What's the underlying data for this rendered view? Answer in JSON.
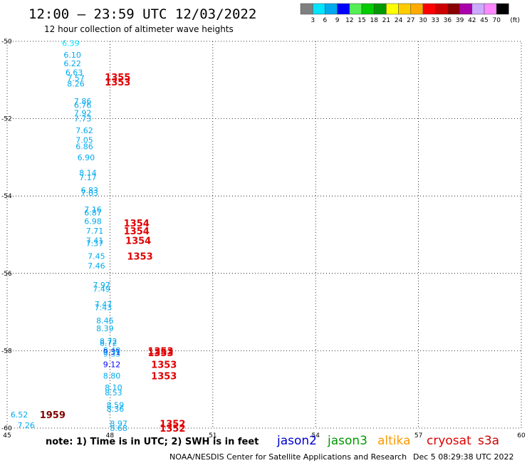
{
  "header": {
    "title": "12:00 – 23:59 UTC 12/03/2022",
    "subtitle": "12 hour collection of altimeter wave heights"
  },
  "colorbar": {
    "labels": [
      "3",
      "6",
      "9",
      "12",
      "15",
      "18",
      "21",
      "24",
      "27",
      "30",
      "33",
      "36",
      "39",
      "42",
      "45",
      "70"
    ],
    "unit": "(ft)",
    "colors": [
      "#808080",
      "#00e5ff",
      "#00aaee",
      "#0000ff",
      "#55ee55",
      "#00cc00",
      "#009900",
      "#ffff00",
      "#ffcc00",
      "#ffaa00",
      "#ff0000",
      "#cc0000",
      "#880000",
      "#aa00aa",
      "#ccaaff",
      "#ff88ff",
      "#000000"
    ]
  },
  "footer": {
    "note": "note: 1) Time is in UTC; 2) SWH is in feet",
    "missions": [
      {
        "name": "jason2",
        "color": "#0000cc"
      },
      {
        "name": "jason3",
        "color": "#009900"
      },
      {
        "name": "altika",
        "color": "#ff9900"
      },
      {
        "name": "cryosat",
        "color": "#dd0000"
      },
      {
        "name": "s3a",
        "color": "#cc0000"
      }
    ],
    "credit": "NOAA/NESDIS Center for Satellite Applications and Research",
    "timestamp": "Dec  5 08:29:38 UTC 2022"
  },
  "chart_data": {
    "type": "scatter",
    "xlim": [
      45,
      60
    ],
    "ylim": [
      -60,
      -50
    ],
    "x_ticks": [
      "45",
      "48",
      "51",
      "54",
      "57",
      "60"
    ],
    "y_ticks": [
      "-50",
      "-52",
      "-54",
      "-56",
      "-58",
      "-60"
    ],
    "grid": true,
    "colors": {
      "swh_cyan": "#00c0e0",
      "swh_blue": "#0040c0",
      "time_red": "#e00000",
      "time_darkred": "#800000",
      "swh_gray": "#606060"
    },
    "points": [
      {
        "x": 46.6,
        "y": -50.05,
        "label": "6.39",
        "color": "#00e5ff"
      },
      {
        "x": 46.65,
        "y": -50.35,
        "label": "6.10",
        "color": "#00aaee"
      },
      {
        "x": 46.65,
        "y": -50.57,
        "label": "6.22",
        "color": "#00aaee"
      },
      {
        "x": 46.7,
        "y": -50.8,
        "label": "6.63",
        "color": "#00aaee"
      },
      {
        "x": 46.75,
        "y": -50.95,
        "label": "7.57",
        "color": "#00aaee"
      },
      {
        "x": 46.75,
        "y": -51.1,
        "label": "8.26",
        "color": "#00aaee"
      },
      {
        "x": 46.95,
        "y": -51.55,
        "label": "7.86",
        "color": "#00aaee"
      },
      {
        "x": 46.95,
        "y": -51.65,
        "label": "6.76",
        "color": "#00aaee"
      },
      {
        "x": 46.95,
        "y": -51.85,
        "label": "7.92",
        "color": "#00aaee"
      },
      {
        "x": 46.95,
        "y": -52.0,
        "label": "7.73",
        "color": "#00aaee"
      },
      {
        "x": 47.0,
        "y": -52.3,
        "label": "7.62",
        "color": "#00aaee"
      },
      {
        "x": 47.0,
        "y": -52.55,
        "label": "7.05",
        "color": "#00aaee"
      },
      {
        "x": 47.0,
        "y": -52.72,
        "label": "6.86",
        "color": "#00aaee"
      },
      {
        "x": 47.05,
        "y": -53.0,
        "label": "6.90",
        "color": "#00aaee"
      },
      {
        "x": 47.1,
        "y": -53.4,
        "label": "8.14",
        "color": "#00aaee"
      },
      {
        "x": 47.1,
        "y": -53.52,
        "label": "7.17",
        "color": "#00aaee"
      },
      {
        "x": 47.15,
        "y": -53.85,
        "label": "6.83",
        "color": "#00aaee"
      },
      {
        "x": 47.15,
        "y": -53.92,
        "label": "7.03",
        "color": "#00aaee"
      },
      {
        "x": 47.25,
        "y": -54.35,
        "label": "7.16",
        "color": "#00aaee"
      },
      {
        "x": 47.25,
        "y": -54.43,
        "label": "6.87",
        "color": "#00aaee"
      },
      {
        "x": 47.25,
        "y": -54.65,
        "label": "6.98",
        "color": "#00aaee"
      },
      {
        "x": 47.3,
        "y": -54.9,
        "label": "7.71",
        "color": "#00aaee"
      },
      {
        "x": 47.3,
        "y": -55.15,
        "label": "7.41",
        "color": "#00aaee"
      },
      {
        "x": 47.3,
        "y": -55.22,
        "label": "7.37",
        "color": "#00aaee"
      },
      {
        "x": 47.35,
        "y": -55.55,
        "label": "7.45",
        "color": "#00aaee"
      },
      {
        "x": 47.35,
        "y": -55.8,
        "label": "7.46",
        "color": "#00aaee"
      },
      {
        "x": 47.5,
        "y": -56.3,
        "label": "7.97",
        "color": "#00aaee"
      },
      {
        "x": 47.5,
        "y": -56.4,
        "label": "7.49",
        "color": "#00aaee"
      },
      {
        "x": 47.55,
        "y": -56.8,
        "label": "7.47",
        "color": "#00aaee"
      },
      {
        "x": 47.55,
        "y": -56.88,
        "label": "7.43",
        "color": "#00aaee"
      },
      {
        "x": 47.6,
        "y": -57.22,
        "label": "8.46",
        "color": "#00aaee"
      },
      {
        "x": 47.6,
        "y": -57.42,
        "label": "8.39",
        "color": "#00aaee"
      },
      {
        "x": 47.7,
        "y": -57.75,
        "label": "8.72",
        "color": "#00aaee"
      },
      {
        "x": 47.7,
        "y": -57.8,
        "label": "8.72",
        "color": "#00aaee"
      },
      {
        "x": 47.8,
        "y": -57.98,
        "label": "8.40",
        "color": "#00aaee"
      },
      {
        "x": 47.8,
        "y": -58.03,
        "label": "9.31",
        "color": "#0000ff"
      },
      {
        "x": 47.8,
        "y": -58.08,
        "label": "9.33",
        "color": "#00aaee"
      },
      {
        "x": 47.8,
        "y": -58.35,
        "label": "9.12",
        "color": "#0000ff"
      },
      {
        "x": 47.8,
        "y": -58.65,
        "label": "8.80",
        "color": "#00aaee"
      },
      {
        "x": 47.85,
        "y": -58.95,
        "label": "8.10",
        "color": "#00aaee"
      },
      {
        "x": 47.85,
        "y": -59.08,
        "label": "8.53",
        "color": "#00aaee"
      },
      {
        "x": 47.9,
        "y": -59.4,
        "label": "8.59",
        "color": "#00aaee"
      },
      {
        "x": 47.9,
        "y": -59.5,
        "label": "8.36",
        "color": "#00aaee"
      },
      {
        "x": 45.1,
        "y": -59.65,
        "label": "6.52",
        "color": "#00aaee"
      },
      {
        "x": 45.3,
        "y": -59.93,
        "label": "7.26",
        "color": "#00aaee"
      },
      {
        "x": 48.0,
        "y": -59.88,
        "label": "8.97",
        "color": "#00aaee"
      },
      {
        "x": 48.0,
        "y": -60.0,
        "label": "8.68",
        "color": "#00aaee"
      }
    ],
    "time_labels": [
      {
        "x": 47.85,
        "y": -50.92,
        "label": "1355",
        "color": "#e00000"
      },
      {
        "x": 47.85,
        "y": -51.05,
        "label": "1353",
        "color": "#e00000"
      },
      {
        "x": 48.4,
        "y": -54.7,
        "label": "1354",
        "color": "#e00000"
      },
      {
        "x": 48.4,
        "y": -54.9,
        "label": "1354",
        "color": "#e00000"
      },
      {
        "x": 48.45,
        "y": -55.15,
        "label": "1354",
        "color": "#e00000"
      },
      {
        "x": 48.5,
        "y": -55.55,
        "label": "1353",
        "color": "#e00000"
      },
      {
        "x": 49.1,
        "y": -58.0,
        "label": "1353",
        "color": "#e00000"
      },
      {
        "x": 49.1,
        "y": -58.05,
        "label": "1353",
        "color": "#e00000"
      },
      {
        "x": 49.2,
        "y": -58.35,
        "label": "1353",
        "color": "#e00000"
      },
      {
        "x": 49.2,
        "y": -58.65,
        "label": "1353",
        "color": "#e00000"
      },
      {
        "x": 45.95,
        "y": -59.65,
        "label": "1959",
        "color": "#800000"
      },
      {
        "x": 49.45,
        "y": -59.88,
        "label": "1352",
        "color": "#e00000"
      },
      {
        "x": 49.45,
        "y": -60.0,
        "label": "1352",
        "color": "#e00000"
      }
    ]
  }
}
